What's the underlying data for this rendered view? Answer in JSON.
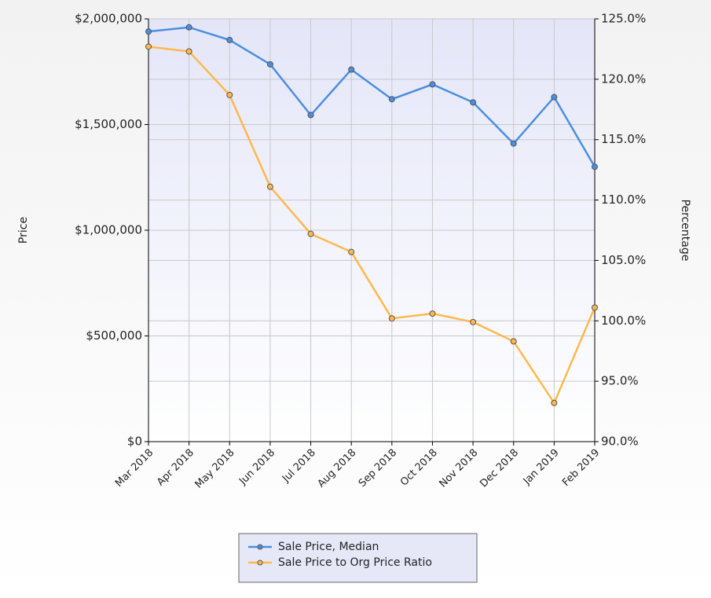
{
  "chart_data": {
    "type": "line",
    "y_label": "Price",
    "y2_label": "Percentage",
    "categories": [
      "Mar 2018",
      "Apr 2018",
      "May 2018",
      "Jun 2018",
      "Jul 2018",
      "Aug 2018",
      "Sep 2018",
      "Oct 2018",
      "Nov 2018",
      "Dec 2018",
      "Jan 2019",
      "Feb 2019"
    ],
    "series": [
      {
        "name": "Sale Price, Median",
        "color": "#4a8fe0",
        "values": [
          1940000,
          1960000,
          1900000,
          1785000,
          1545000,
          1760000,
          1620000,
          1690000,
          1605000,
          1410000,
          1630000,
          1300000
        ]
      },
      {
        "name": "Sale Price to Org Price Ratio",
        "color": "#ffb84d",
        "axis": "y2",
        "values": [
          122.7,
          122.3,
          118.7,
          111.1,
          107.2,
          105.7,
          100.2,
          100.6,
          99.9,
          98.3,
          93.2,
          101.1
        ]
      }
    ],
    "ylim": [
      0,
      2000000
    ],
    "yticks": [
      {
        "value": 0,
        "label": "$0"
      },
      {
        "value": 500000,
        "label": "$500,000"
      },
      {
        "value": 1000000,
        "label": "$1,000,000"
      },
      {
        "value": 1500000,
        "label": "$1,500,000"
      },
      {
        "value": 2000000,
        "label": "$2,000,000"
      }
    ],
    "y2lim": [
      90,
      125
    ],
    "y2ticks": [
      {
        "value": 90,
        "label": "90.0%"
      },
      {
        "value": 95,
        "label": "95.0%"
      },
      {
        "value": 100,
        "label": "100.0%"
      },
      {
        "value": 105,
        "label": "105.0%"
      },
      {
        "value": 110,
        "label": "110.0%"
      },
      {
        "value": 115,
        "label": "115.0%"
      },
      {
        "value": 120,
        "label": "120.0%"
      },
      {
        "value": 125,
        "label": "125.0%"
      }
    ],
    "grid": true,
    "legend": "bottom"
  }
}
